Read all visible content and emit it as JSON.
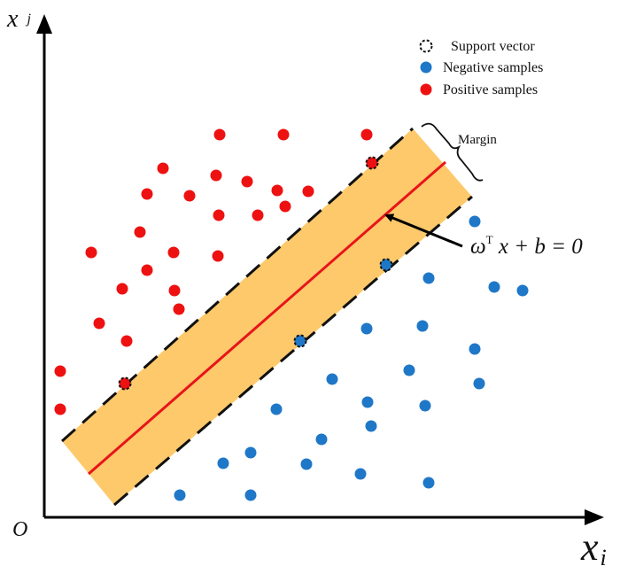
{
  "axes": {
    "x_label": "x",
    "x_subscript": "i",
    "y_label": "x",
    "y_subscript": "j",
    "origin_label": "O"
  },
  "legend": {
    "support": "Support vector",
    "negative": "Negative samples",
    "positive": "Positive samples"
  },
  "margin_label": "Margin",
  "equation": {
    "omega": "ω",
    "sup": "T",
    "rest": " x + b = 0"
  },
  "colors": {
    "positive": "#ee1111",
    "negative": "#1f77c8",
    "band": "#fdc96a",
    "hyperplane": "#e8141b",
    "boundary": "#111111"
  },
  "samples": {
    "positive": [
      [
        248,
        152
      ],
      [
        320,
        152
      ],
      [
        414,
        152
      ],
      [
        184,
        190
      ],
      [
        244,
        198
      ],
      [
        279,
        205
      ],
      [
        166,
        219
      ],
      [
        214,
        221
      ],
      [
        313,
        215
      ],
      [
        348,
        216
      ],
      [
        322,
        233
      ],
      [
        247,
        243
      ],
      [
        291,
        243
      ],
      [
        158,
        262
      ],
      [
        103,
        285
      ],
      [
        196,
        285
      ],
      [
        246,
        289
      ],
      [
        166,
        305
      ],
      [
        138,
        326
      ],
      [
        197,
        328
      ],
      [
        202,
        349
      ],
      [
        112,
        365
      ],
      [
        143,
        385
      ],
      [
        68,
        419
      ],
      [
        68,
        462
      ]
    ],
    "negative": [
      [
        536,
        250
      ],
      [
        484,
        314
      ],
      [
        558,
        324
      ],
      [
        590,
        328
      ],
      [
        414,
        371
      ],
      [
        477,
        368
      ],
      [
        536,
        394
      ],
      [
        462,
        418
      ],
      [
        541,
        433
      ],
      [
        375,
        428
      ],
      [
        415,
        454
      ],
      [
        480,
        458
      ],
      [
        312,
        462
      ],
      [
        419,
        481
      ],
      [
        363,
        496
      ],
      [
        283,
        511
      ],
      [
        252,
        523
      ],
      [
        346,
        524
      ],
      [
        407,
        535
      ],
      [
        484,
        545
      ],
      [
        203,
        559
      ],
      [
        283,
        559
      ]
    ],
    "support_positive": [
      [
        420,
        184
      ],
      [
        141,
        433
      ]
    ],
    "support_negative": [
      [
        436,
        299
      ],
      [
        339,
        385
      ]
    ]
  }
}
